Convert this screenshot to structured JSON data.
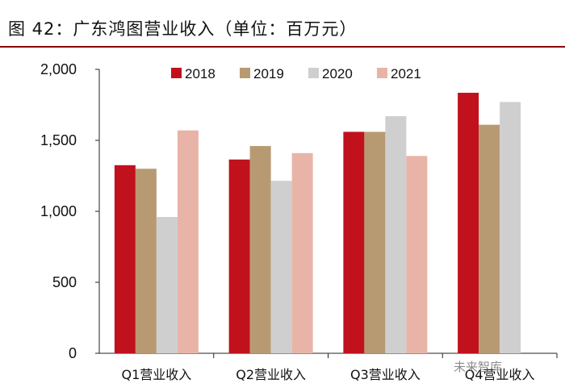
{
  "header": {
    "title": "图 42：广东鸿图营业收入（单位：百万元）"
  },
  "watermark": "未来智库",
  "chart_data": {
    "type": "bar",
    "title": "图 42：广东鸿图营业收入（单位：百万元）",
    "categories": [
      "Q1营业收入",
      "Q2营业收入",
      "Q3营业收入",
      "Q4营业收入"
    ],
    "series": [
      {
        "name": "2018",
        "color": "#c0111d",
        "values": [
          1325,
          1365,
          1560,
          1835
        ]
      },
      {
        "name": "2019",
        "color": "#b89a72",
        "values": [
          1300,
          1460,
          1560,
          1610
        ]
      },
      {
        "name": "2020",
        "color": "#cfcfcf",
        "values": [
          960,
          1215,
          1670,
          1770
        ]
      },
      {
        "name": "2021",
        "color": "#e8b4a8",
        "values": [
          1570,
          1410,
          1390,
          null
        ]
      }
    ],
    "ylim": [
      0,
      2000
    ],
    "yticks": [
      0,
      500,
      1000,
      1500,
      2000
    ],
    "ytick_labels": [
      "0",
      "500",
      "1,000",
      "1,500",
      "2,000"
    ],
    "grid": false,
    "legend": "top"
  }
}
